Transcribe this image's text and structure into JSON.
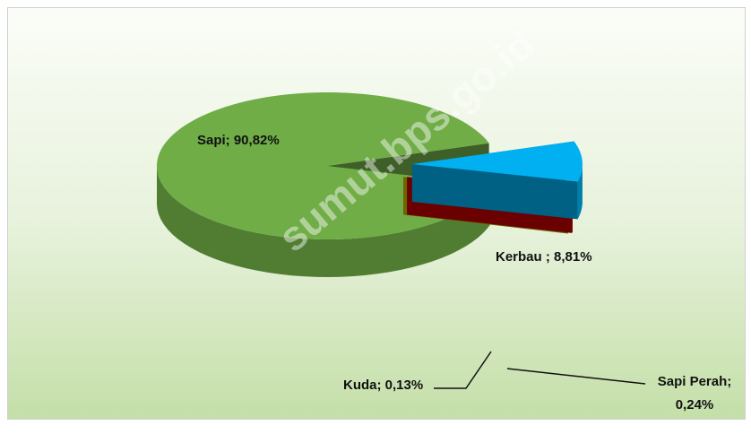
{
  "chart_data": {
    "type": "pie3d",
    "values": [
      90.82,
      8.81,
      0.24,
      0.13
    ],
    "value_labels": [
      "Sapi; 90,82%",
      "Kerbau ; 8,81%",
      "Sapi Perah; 0,24%",
      "Kuda; 0,13%"
    ],
    "colors": [
      "#70ad47",
      "#00b0f0",
      "#c00000",
      "#c9b800"
    ],
    "watermark": "sumut.bps.go.id"
  }
}
